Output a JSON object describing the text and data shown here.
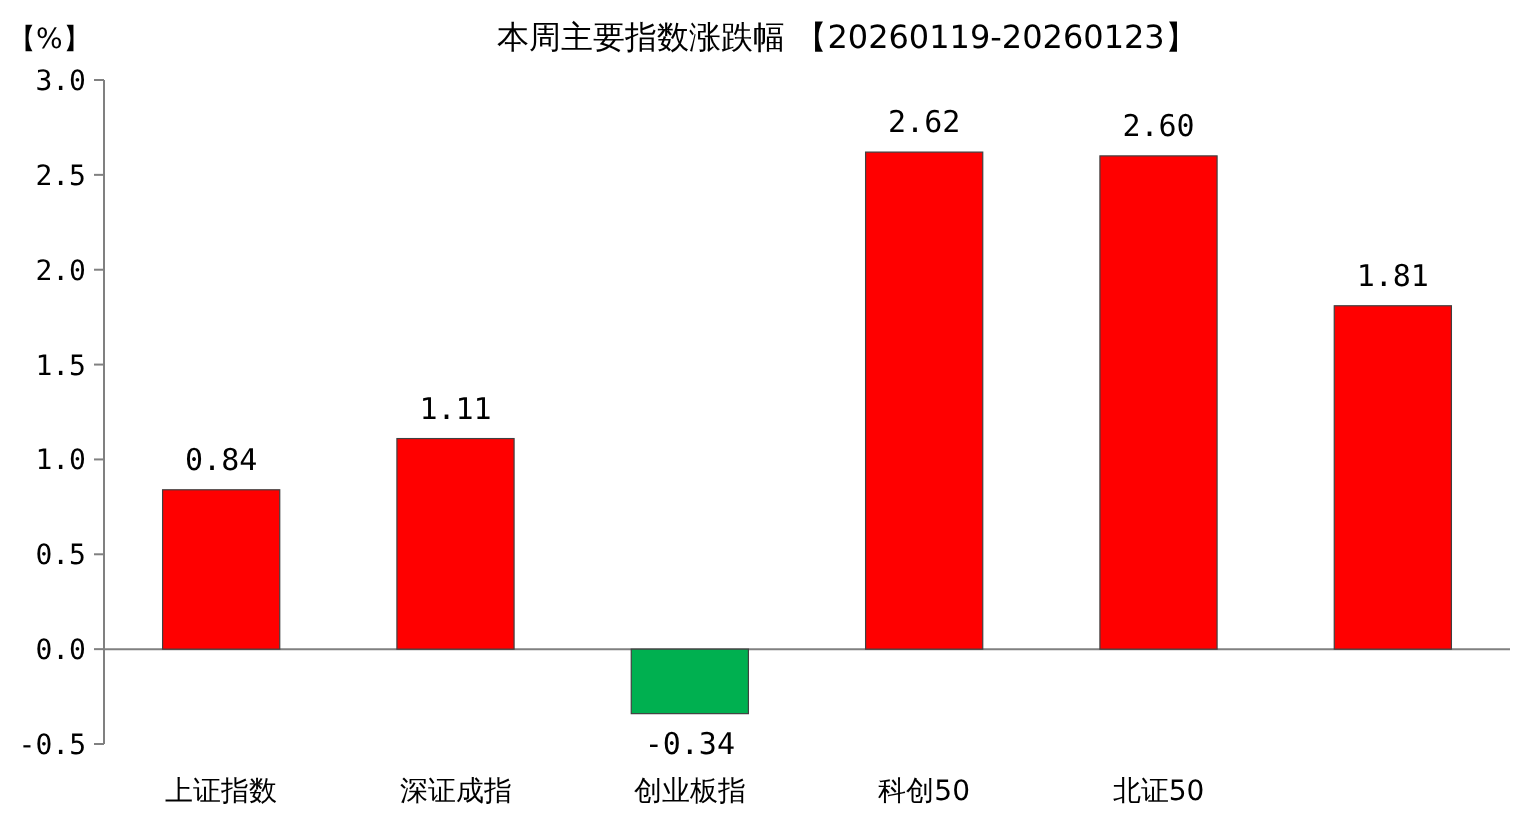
{
  "chart_data": {
    "type": "bar",
    "title": "本周主要指数涨跌幅 【20260119-20260123】",
    "ylabel": "【%】",
    "categories": [
      "上证指数",
      "深证成指",
      "创业板指",
      "科创50",
      "北证50",
      null
    ],
    "values": [
      0.84,
      1.11,
      -0.34,
      2.62,
      2.6,
      1.81
    ],
    "colors": [
      "#ff0000",
      "#ff0000",
      "#00b050",
      "#ff0000",
      "#ff0000",
      "#ff0000"
    ],
    "value_labels": [
      "0.84",
      "1.11",
      "-0.34",
      "2.62",
      "2.60",
      "1.81"
    ],
    "ylim": [
      -0.5,
      3.0
    ],
    "yticks": [
      {
        "value": -0.5,
        "label": "-0.5"
      },
      {
        "value": 0,
        "label": "0.0"
      },
      {
        "value": 0.5,
        "label": "0.5"
      },
      {
        "value": 1,
        "label": "1.0"
      },
      {
        "value": 1.5,
        "label": "1.5"
      },
      {
        "value": 2,
        "label": "2.0"
      },
      {
        "value": 2.5,
        "label": "2.5"
      },
      {
        "value": 3,
        "label": "3.0"
      }
    ]
  }
}
